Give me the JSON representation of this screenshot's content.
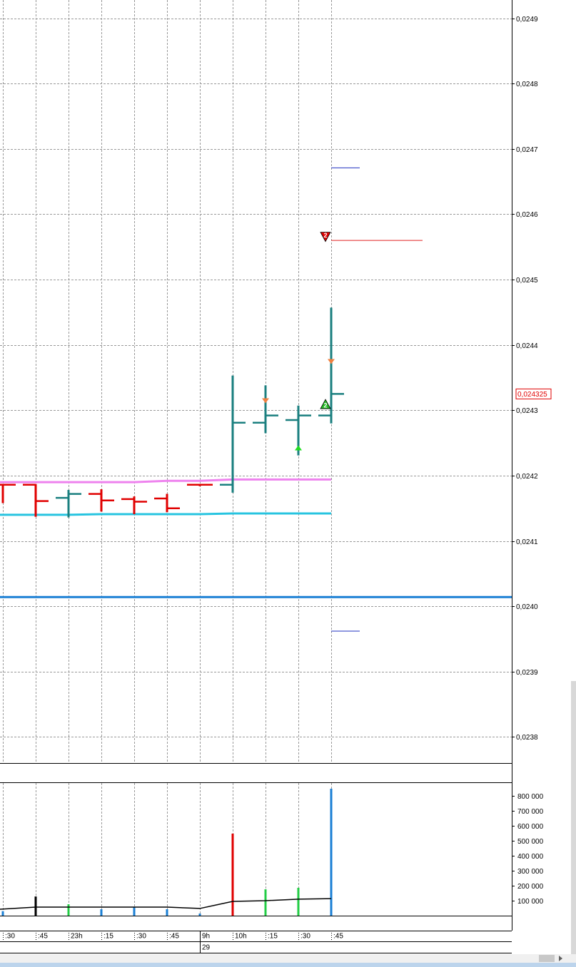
{
  "chart_data": [
    {
      "type": "ohlc",
      "categories": [
        ":30",
        ":45",
        "23h",
        ":15",
        ":30",
        ":45",
        "9h",
        "10h",
        ":15",
        ":30",
        ":45"
      ],
      "date_label": "29",
      "date_index": 6,
      "open": [
        0.024186,
        0.024186,
        0.024166,
        0.024172,
        0.024164,
        0.024165,
        0.024186,
        0.024186,
        0.024281,
        0.024285,
        0.024292
      ],
      "high": [
        0.024186,
        0.024186,
        0.024177,
        0.024178,
        0.024167,
        0.024171,
        0.024186,
        0.024352,
        0.024337,
        0.024306,
        0.024456
      ],
      "low": [
        0.024159,
        0.024138,
        0.024137,
        0.024146,
        0.024142,
        0.024145,
        0.024186,
        0.024175,
        0.024266,
        0.024232,
        0.024281
      ],
      "close": [
        0.024186,
        0.024161,
        0.024172,
        0.024162,
        0.02416,
        0.02415,
        0.024186,
        0.024281,
        0.024292,
        0.024292,
        0.024325
      ],
      "colors": [
        "#e00000",
        "#e00000",
        "#1a7f7f",
        "#e00000",
        "#e00000",
        "#e00000",
        "#e00000",
        "#1a7f7f",
        "#1a7f7f",
        "#1a7f7f",
        "#1a7f7f"
      ],
      "lines": [
        {
          "color": "#ee82ee",
          "values": [
            0.02419,
            0.02419,
            0.02419,
            0.02419,
            0.02419,
            0.024192,
            0.024192,
            0.024194,
            0.024194,
            0.024194,
            0.024194
          ]
        },
        {
          "color": "#27c4e0",
          "values": [
            0.02414,
            0.02414,
            0.02414,
            0.024141,
            0.024141,
            0.024141,
            0.024141,
            0.024142,
            0.024142,
            0.024142,
            0.024142
          ]
        }
      ],
      "levels": [
        {
          "value": 0.024014,
          "color": "#1a7fd4",
          "style": "full"
        },
        {
          "value": 0.024671,
          "color": "#2030c0",
          "style": "short"
        },
        {
          "value": 0.02456,
          "color": "#e02020",
          "style": "long"
        },
        {
          "value": 0.023962,
          "color": "#2030c0",
          "style": "short"
        }
      ],
      "markers": [
        {
          "index": 8,
          "value": 0.024314,
          "shape": "down",
          "color": "#f08040"
        },
        {
          "index": 10,
          "value": 0.024374,
          "shape": "down",
          "color": "#f08040"
        },
        {
          "index": 9,
          "value": 0.024243,
          "shape": "up",
          "color": "#22dd22"
        },
        {
          "index": 10,
          "value": 0.024566,
          "shape": "signal-down",
          "color": "#e00000",
          "label": "2"
        },
        {
          "index": 10,
          "value": 0.024309,
          "shape": "signal-up",
          "color": "#22bb22",
          "label": "2"
        }
      ],
      "last_price": {
        "value": 0.024325,
        "label": "0,024325",
        "color": "#e00000"
      },
      "ylim": [
        0.02376,
        0.024928
      ],
      "yticks": [
        {
          "value": 0.0238,
          "label": "0,0238"
        },
        {
          "value": 0.0239,
          "label": "0,0239"
        },
        {
          "value": 0.024,
          "label": "0,0240"
        },
        {
          "value": 0.0241,
          "label": "0,0241"
        },
        {
          "value": 0.0242,
          "label": "0,0242"
        },
        {
          "value": 0.0243,
          "label": "0,0243"
        },
        {
          "value": 0.0244,
          "label": "0,0244"
        },
        {
          "value": 0.0245,
          "label": "0,0245"
        },
        {
          "value": 0.0246,
          "label": "0,0246"
        },
        {
          "value": 0.0247,
          "label": "0,0247"
        },
        {
          "value": 0.0248,
          "label": "0,0248"
        },
        {
          "value": 0.0249,
          "label": "0,0249"
        }
      ],
      "grid": true
    },
    {
      "type": "bar",
      "values": [
        30000,
        128000,
        76000,
        43000,
        57000,
        43000,
        14000,
        548000,
        176000,
        186000,
        848000
      ],
      "colors": [
        "#1a7fd4",
        "#000000",
        "#22cc44",
        "#1a7fd4",
        "#1a7fd4",
        "#1a7fd4",
        "#1a7fd4",
        "#e00000",
        "#22cc44",
        "#22cc44",
        "#1a7fd4"
      ],
      "line": {
        "color": "#000000",
        "values": [
          43000,
          57000,
          57000,
          57000,
          57000,
          57000,
          48000,
          95000,
          100000,
          110000,
          114000
        ]
      },
      "ylim": [
        0,
        886000
      ],
      "yticks": [
        {
          "value": 100000,
          "label": "100 000"
        },
        {
          "value": 200000,
          "label": "200 000"
        },
        {
          "value": 300000,
          "label": "300 000"
        },
        {
          "value": 400000,
          "label": "400 000"
        },
        {
          "value": 500000,
          "label": "500 000"
        },
        {
          "value": 600000,
          "label": "600 000"
        },
        {
          "value": 700000,
          "label": "700 000"
        },
        {
          "value": 800000,
          "label": "800 000"
        }
      ],
      "grid": true
    }
  ]
}
